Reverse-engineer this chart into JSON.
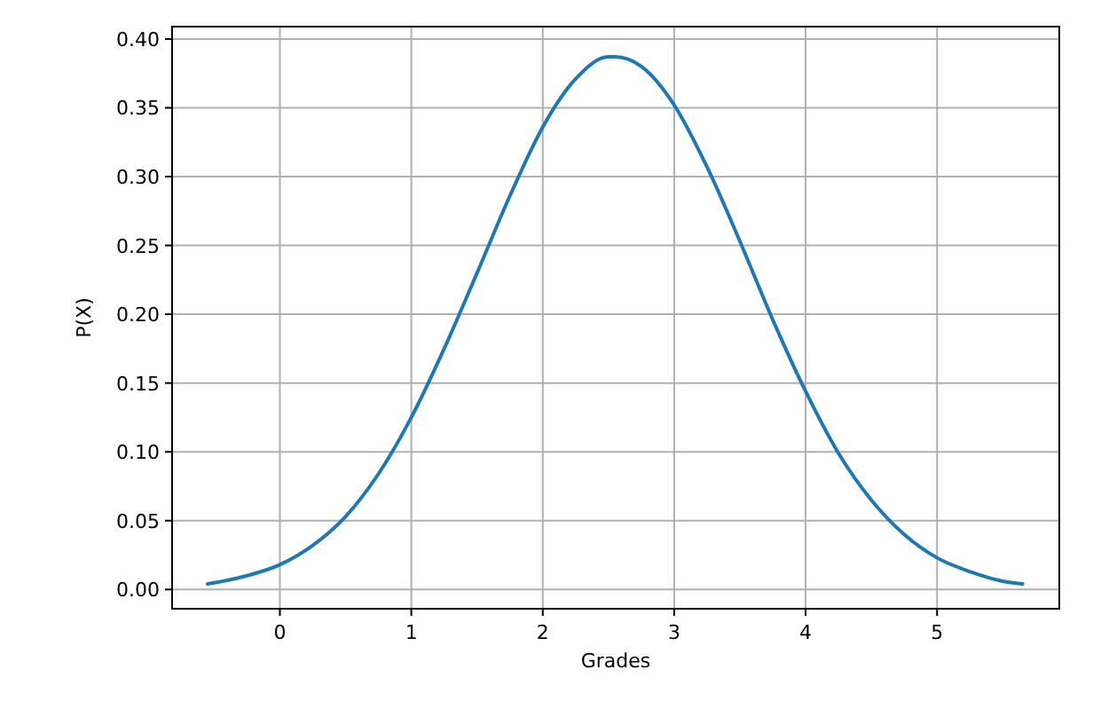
{
  "chart_data": {
    "type": "line",
    "xlabel": "Grades",
    "ylabel": "P(X)",
    "x": [
      -0.55,
      -0.25,
      0,
      0.25,
      0.5,
      0.75,
      1,
      1.25,
      1.5,
      1.75,
      2,
      2.25,
      2.5,
      2.55,
      2.75,
      3,
      3.25,
      3.5,
      3.75,
      4,
      4.25,
      4.5,
      4.75,
      5,
      5.25,
      5.5,
      5.65
    ],
    "series": [
      {
        "color": "#1f77b4",
        "values": [
          0.004,
          0.01,
          0.018,
          0.032,
          0.053,
          0.084,
          0.125,
          0.175,
          0.23,
          0.286,
          0.336,
          0.371,
          0.387,
          0.387,
          0.38,
          0.352,
          0.307,
          0.253,
          0.196,
          0.144,
          0.099,
          0.065,
          0.04,
          0.023,
          0.013,
          0.006,
          0.004
        ]
      }
    ],
    "xlim": [
      -0.82,
      5.93
    ],
    "ylim": [
      -0.014,
      0.409
    ],
    "xticks": [
      0,
      1,
      2,
      3,
      4,
      5
    ],
    "yticks": [
      {
        "value": 0,
        "label": "0.00"
      },
      {
        "value": 0.05,
        "label": "0.05"
      },
      {
        "value": 0.1,
        "label": "0.10"
      },
      {
        "value": 0.15,
        "label": "0.15"
      },
      {
        "value": 0.2,
        "label": "0.20"
      },
      {
        "value": 0.25,
        "label": "0.25"
      },
      {
        "value": 0.3,
        "label": "0.30"
      },
      {
        "value": 0.35,
        "label": "0.35"
      },
      {
        "value": 0.4,
        "label": "0.40"
      }
    ],
    "grid": true
  }
}
